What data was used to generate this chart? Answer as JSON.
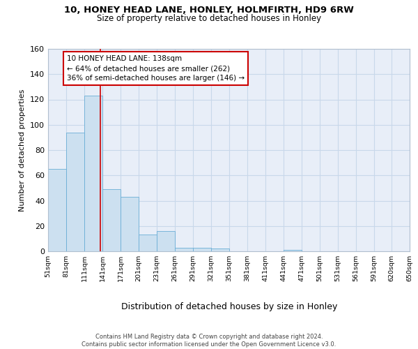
{
  "title_line1": "10, HONEY HEAD LANE, HONLEY, HOLMFIRTH, HD9 6RW",
  "title_line2": "Size of property relative to detached houses in Honley",
  "xlabel": "Distribution of detached houses by size in Honley",
  "ylabel": "Number of detached properties",
  "bar_edges": [
    51,
    81,
    111,
    141,
    171,
    201,
    231,
    261,
    291,
    321,
    351,
    381,
    411,
    441,
    471,
    501,
    531,
    561,
    591,
    620,
    650
  ],
  "bar_heights": [
    65,
    94,
    123,
    49,
    43,
    13,
    16,
    3,
    3,
    2,
    0,
    0,
    0,
    1,
    0,
    0,
    0,
    0,
    0,
    0
  ],
  "bar_color": "#cce0f0",
  "bar_edge_color": "#6aaed6",
  "vline_x": 138,
  "vline_color": "#cc0000",
  "annotation_text": "10 HONEY HEAD LANE: 138sqm\n← 64% of detached houses are smaller (262)\n36% of semi-detached houses are larger (146) →",
  "annotation_box_color": "#ffffff",
  "annotation_box_edge": "#cc0000",
  "tick_labels": [
    "51sqm",
    "81sqm",
    "111sqm",
    "141sqm",
    "171sqm",
    "201sqm",
    "231sqm",
    "261sqm",
    "291sqm",
    "321sqm",
    "351sqm",
    "381sqm",
    "411sqm",
    "441sqm",
    "471sqm",
    "501sqm",
    "531sqm",
    "561sqm",
    "591sqm",
    "620sqm",
    "650sqm"
  ],
  "ylim": [
    0,
    160
  ],
  "yticks": [
    0,
    20,
    40,
    60,
    80,
    100,
    120,
    140,
    160
  ],
  "grid_color": "#c8d8ea",
  "bg_color": "#e8eef8",
  "footer": "Contains HM Land Registry data © Crown copyright and database right 2024.\nContains public sector information licensed under the Open Government Licence v3.0."
}
